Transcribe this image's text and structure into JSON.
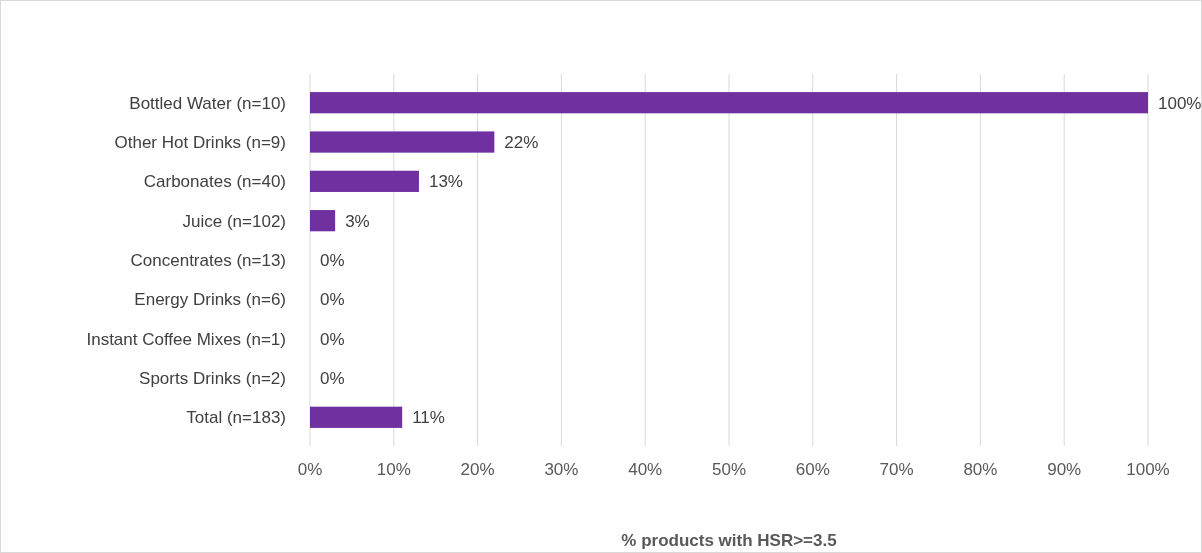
{
  "chart_data": {
    "type": "bar",
    "orientation": "horizontal",
    "xlabel": "% products with HSR>=3.5",
    "categories": [
      "Bottled Water (n=10)",
      "Other Hot Drinks (n=9)",
      "Carbonates (n=40)",
      "Juice (n=102)",
      "Concentrates (n=13)",
      "Energy Drinks (n=6)",
      "Instant Coffee Mixes (n=1)",
      "Sports Drinks (n=2)",
      "Total (n=183)"
    ],
    "values": [
      100,
      22,
      13,
      3,
      0,
      0,
      0,
      0,
      11
    ],
    "value_labels": [
      "100%",
      "22%",
      "13%",
      "3%",
      "0%",
      "0%",
      "0%",
      "0%",
      "11%"
    ],
    "color": "#7030a0",
    "xlim": [
      0,
      100
    ],
    "xticks": [
      {
        "value": 0,
        "label": "0%"
      },
      {
        "value": 10,
        "label": "10%"
      },
      {
        "value": 20,
        "label": "20%"
      },
      {
        "value": 30,
        "label": "30%"
      },
      {
        "value": 40,
        "label": "40%"
      },
      {
        "value": 50,
        "label": "50%"
      },
      {
        "value": 60,
        "label": "60%"
      },
      {
        "value": 70,
        "label": "70%"
      },
      {
        "value": 80,
        "label": "80%"
      },
      {
        "value": 90,
        "label": "90%"
      },
      {
        "value": 100,
        "label": "100%"
      }
    ],
    "grid": "x"
  }
}
